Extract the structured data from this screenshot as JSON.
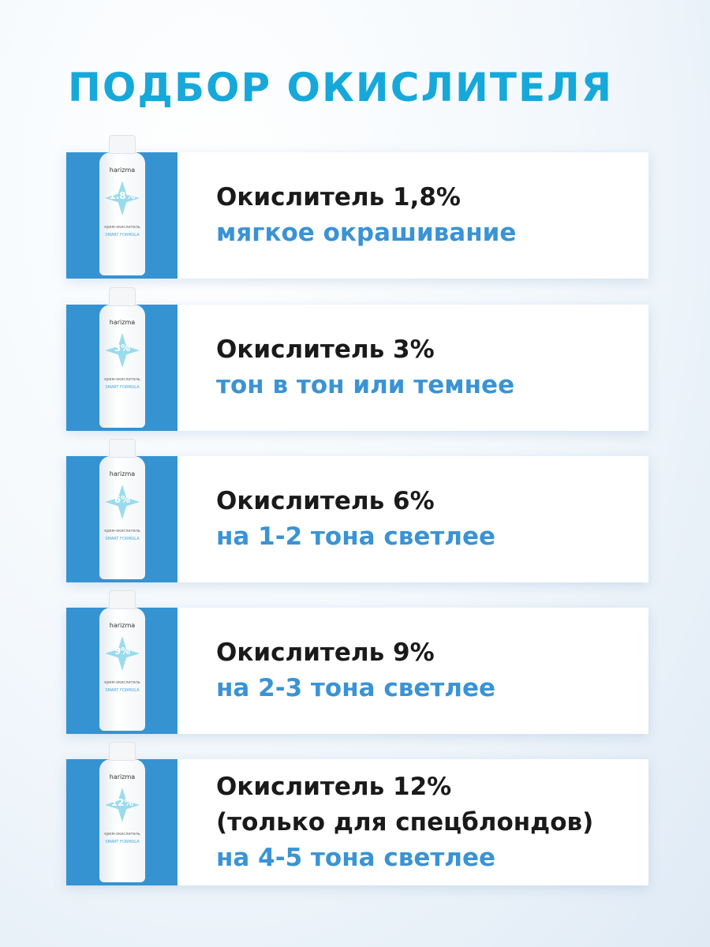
{
  "title": "ПОДБОР ОКИСЛИТЕЛЯ",
  "colors": {
    "title": "#17a8da",
    "accent": "#3593d2",
    "subtitle": "#3a93d4"
  },
  "bottle": {
    "brand": "harizma",
    "label": "крем-окислитель",
    "formula": "SMART FORMULA"
  },
  "cards": [
    {
      "bottle_pct": "1.8%",
      "name": "Окислитель 1,8%",
      "note": "",
      "desc": "мягкое окрашивание"
    },
    {
      "bottle_pct": "3%",
      "name": "Окислитель 3%",
      "note": "",
      "desc": "тон в тон или темнее"
    },
    {
      "bottle_pct": "6%",
      "name": "Окислитель 6%",
      "note": "",
      "desc": "на 1-2 тона светлее"
    },
    {
      "bottle_pct": "9%",
      "name": "Окислитель 9%",
      "note": "",
      "desc": "на 2-3 тона светлее"
    },
    {
      "bottle_pct": "12%",
      "name": "Окислитель 12%",
      "note": "(только для спецблондов)",
      "desc": "на 4-5 тона светлее"
    }
  ]
}
